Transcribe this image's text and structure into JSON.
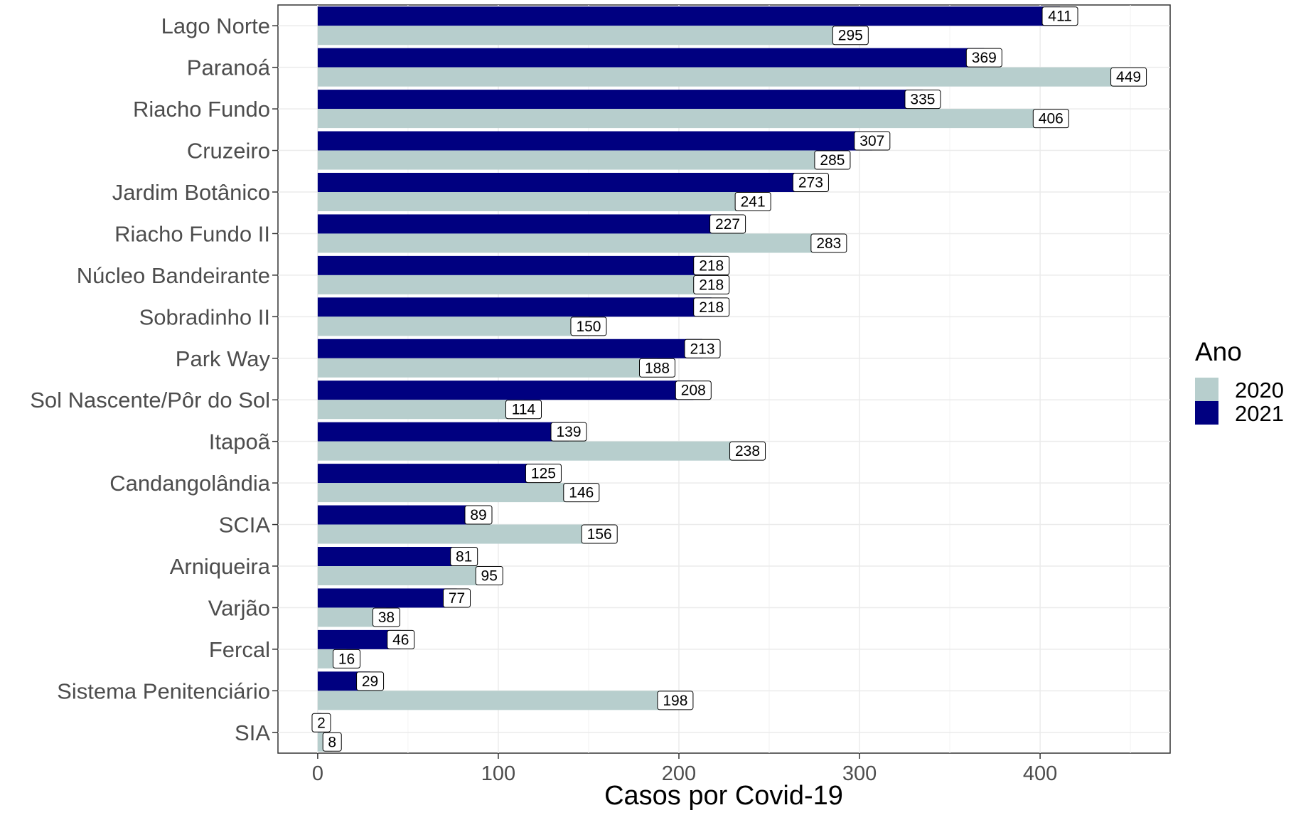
{
  "chart_data": {
    "type": "bar",
    "orientation": "horizontal",
    "title": "",
    "xlabel": "Casos por Covid-19",
    "ylabel": "",
    "xlim": [
      -22,
      472
    ],
    "xticks": [
      0,
      100,
      200,
      300,
      400
    ],
    "grid": true,
    "legend_position": "right",
    "legend_title": "Ano",
    "colors": {
      "2020": "#b7cecd",
      "2021": "#000080"
    },
    "categories": [
      "Lago Norte",
      "Paranoá",
      "Riacho Fundo",
      "Cruzeiro",
      "Jardim Botânico",
      "Riacho Fundo II",
      "Núcleo Bandeirante",
      "Sobradinho II",
      "Park Way",
      "Sol Nascente/Pôr do Sol",
      "Itapoã",
      "Candangolândia",
      "SCIA",
      "Arniqueira",
      "Varjão",
      "Fercal",
      "Sistema Penitenciário",
      "SIA"
    ],
    "series": [
      {
        "name": "2020",
        "values": [
          295,
          449,
          406,
          285,
          241,
          283,
          218,
          150,
          188,
          114,
          238,
          146,
          156,
          95,
          38,
          16,
          198,
          8
        ]
      },
      {
        "name": "2021",
        "values": [
          411,
          369,
          335,
          307,
          273,
          227,
          218,
          218,
          213,
          208,
          139,
          125,
          89,
          81,
          77,
          46,
          29,
          2
        ]
      }
    ]
  }
}
